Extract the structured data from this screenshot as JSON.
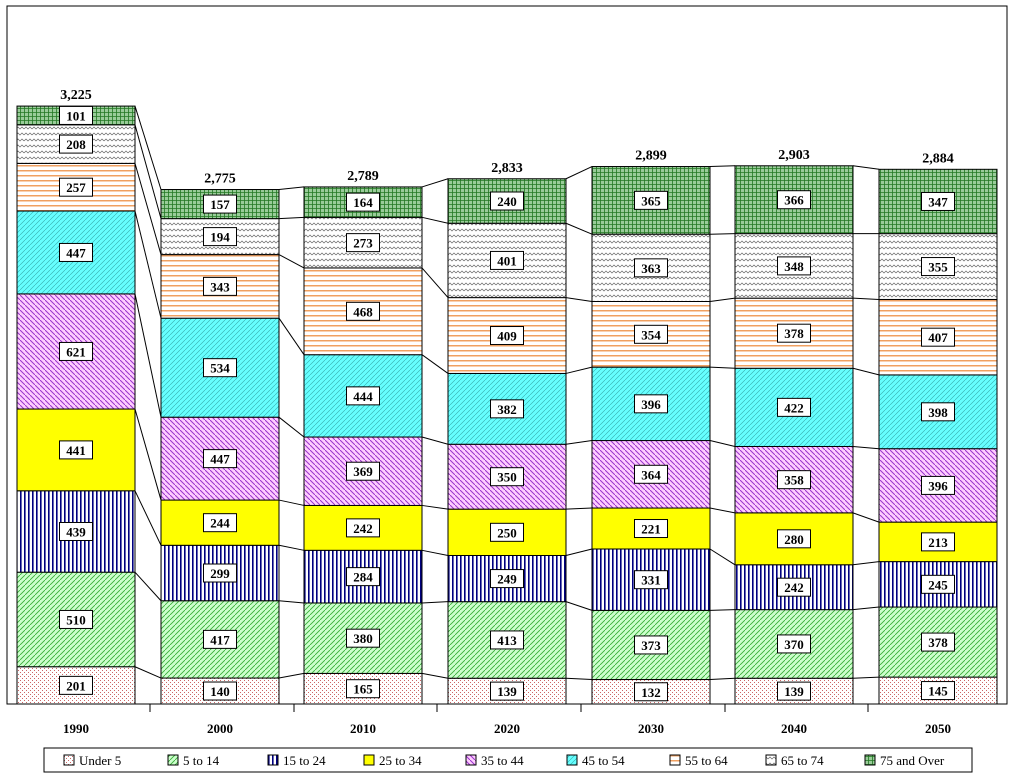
{
  "chart_data": {
    "type": "bar",
    "stacked": true,
    "categories": [
      "1990",
      "2000",
      "2010",
      "2020",
      "2030",
      "2040",
      "2050"
    ],
    "totals": [
      "3,225",
      "2,775",
      "2,789",
      "2,833",
      "2,899",
      "2,903",
      "2,884"
    ],
    "series": [
      {
        "name": "Under 5",
        "color": "#ffffff",
        "pattern": "dots-pink",
        "values": [
          201,
          140,
          165,
          139,
          132,
          139,
          145
        ]
      },
      {
        "name": "5 to 14",
        "color": "#ccffcc",
        "pattern": "diag-green",
        "values": [
          510,
          417,
          380,
          413,
          373,
          370,
          378
        ]
      },
      {
        "name": "15 to 24",
        "color": "#ffffff",
        "pattern": "vert-navy",
        "values": [
          439,
          299,
          284,
          249,
          331,
          242,
          245
        ]
      },
      {
        "name": "25 to 34",
        "color": "#ffff00",
        "pattern": "solid",
        "values": [
          441,
          244,
          242,
          250,
          221,
          280,
          213
        ]
      },
      {
        "name": "35 to 44",
        "color": "#ffccff",
        "pattern": "diag-purple",
        "values": [
          621,
          447,
          369,
          350,
          364,
          358,
          396
        ]
      },
      {
        "name": "45 to 54",
        "color": "#66ffff",
        "pattern": "diag-teal",
        "values": [
          447,
          534,
          444,
          382,
          396,
          422,
          398
        ]
      },
      {
        "name": "55 to 64",
        "color": "#ffffff",
        "pattern": "horiz-orange",
        "values": [
          257,
          343,
          468,
          409,
          354,
          378,
          407
        ]
      },
      {
        "name": "65 to 74",
        "color": "#ffffff",
        "pattern": "wave-gray",
        "values": [
          208,
          194,
          273,
          401,
          363,
          348,
          355
        ]
      },
      {
        "name": "75 and Over",
        "color": "#99cc99",
        "pattern": "grid-green",
        "values": [
          101,
          157,
          164,
          240,
          365,
          366,
          347
        ]
      }
    ],
    "ylim": [
      0,
      3400
    ],
    "xlabel": "",
    "ylabel": "",
    "title": "",
    "legend_position": "bottom",
    "grid": false
  }
}
